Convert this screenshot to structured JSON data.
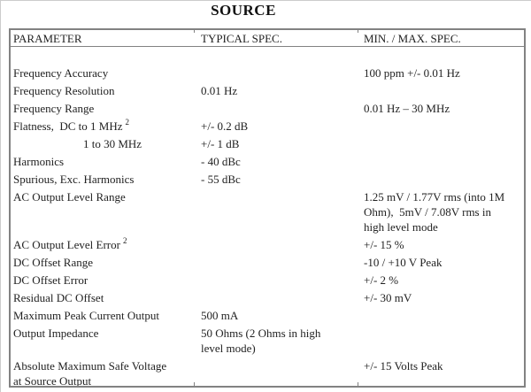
{
  "page": {
    "title": "SOURCE"
  },
  "colors": {
    "table_border": "#828282",
    "text": "#222222",
    "background": "#ffffff"
  },
  "table": {
    "headers": [
      "PARAMETER",
      "TYPICAL SPEC.",
      "MIN. / MAX. SPEC."
    ],
    "rows": [
      {
        "param": "Frequency Accuracy",
        "typical": "",
        "minmax": "100 ppm +/- 0.01 Hz"
      },
      {
        "param": "Frequency Resolution",
        "typical": "0.01 Hz",
        "minmax": ""
      },
      {
        "param": "Frequency Range",
        "typical": "",
        "minmax": "0.01 Hz – 30 MHz"
      },
      {
        "param": "Flatness,  DC to 1 MHz",
        "sup": "2",
        "typical": "+/- 0.2 dB",
        "minmax": ""
      },
      {
        "param": "1 to 30 MHz",
        "indent": true,
        "typical": "+/- 1 dB",
        "minmax": ""
      },
      {
        "param": "Harmonics",
        "typical": "- 40 dBc",
        "minmax": ""
      },
      {
        "param": "Spurious, Exc. Harmonics",
        "typical": "- 55 dBc",
        "minmax": ""
      },
      {
        "param": "AC Output Level Range",
        "typical": "",
        "minmax": "1.25 mV / 1.77V rms (into 1M\nOhm),  5mV / 7.08V rms in\nhigh level mode"
      },
      {
        "param": "AC Output Level Error",
        "sup": "2",
        "typical": "",
        "minmax": "+/- 15 %"
      },
      {
        "param": "DC Offset Range",
        "typical": "",
        "minmax": "-10 / +10 V Peak"
      },
      {
        "param": "DC Offset Error",
        "typical": "",
        "minmax": "+/- 2 %"
      },
      {
        "param": "Residual DC Offset",
        "typical": "",
        "minmax": "+/- 30 mV"
      },
      {
        "param": "Maximum Peak Current Output",
        "typical": "500 mA",
        "minmax": ""
      },
      {
        "param": "Output Impedance",
        "typical": "50 Ohms (2 Ohms in high\nlevel mode)",
        "minmax": ""
      },
      {
        "param": "Absolute Maximum Safe Voltage\nat Source Output",
        "typical": "",
        "minmax": "+/- 15 Volts Peak"
      }
    ]
  }
}
